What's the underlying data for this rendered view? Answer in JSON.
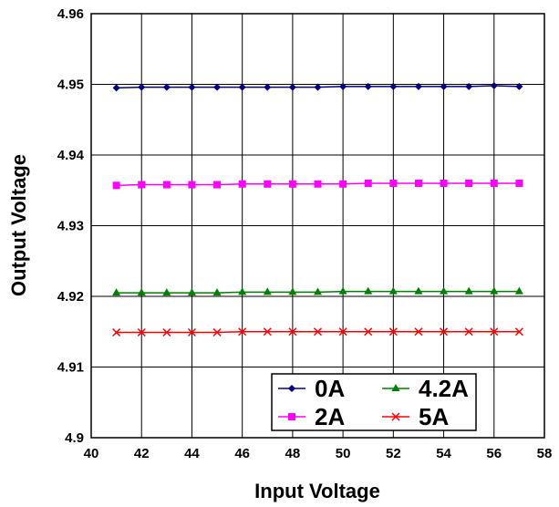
{
  "chart_data": {
    "type": "line",
    "title": "",
    "xlabel": "Input Voltage",
    "ylabel": "Output Voltage",
    "xlim": [
      40,
      58
    ],
    "ylim": [
      4.9,
      4.96
    ],
    "x_ticks": [
      "40",
      "42",
      "44",
      "46",
      "48",
      "50",
      "52",
      "54",
      "56",
      "58"
    ],
    "y_ticks": [
      "4.9",
      "4.91",
      "4.92",
      "4.93",
      "4.94",
      "4.95",
      "4.96"
    ],
    "grid": true,
    "legend_position": "bottom-right",
    "x": [
      41,
      42,
      43,
      44,
      45,
      46,
      47,
      48,
      49,
      50,
      51,
      52,
      53,
      54,
      55,
      56,
      57
    ],
    "series": [
      {
        "name": "0A",
        "color": "#000080",
        "marker": "diamond",
        "values": [
          4.9495,
          4.9496,
          4.9496,
          4.9496,
          4.9496,
          4.9496,
          4.9496,
          4.9496,
          4.9496,
          4.9497,
          4.9497,
          4.9497,
          4.9497,
          4.9497,
          4.9497,
          4.9498,
          4.9497
        ]
      },
      {
        "name": "2A",
        "color": "#ff00ff",
        "marker": "square",
        "values": [
          4.9357,
          4.9358,
          4.9358,
          4.9358,
          4.9358,
          4.9359,
          4.9359,
          4.9359,
          4.9359,
          4.9359,
          4.936,
          4.936,
          4.936,
          4.936,
          4.936,
          4.936,
          4.936
        ]
      },
      {
        "name": "4.2A",
        "color": "#008000",
        "marker": "triangle",
        "values": [
          4.9205,
          4.9205,
          4.9205,
          4.9205,
          4.9205,
          4.9206,
          4.9206,
          4.9206,
          4.9206,
          4.9207,
          4.9207,
          4.9207,
          4.9207,
          4.9207,
          4.9207,
          4.9207,
          4.9207
        ]
      },
      {
        "name": "5A",
        "color": "#ff0000",
        "marker": "x",
        "values": [
          4.9149,
          4.9149,
          4.9149,
          4.9149,
          4.9149,
          4.915,
          4.915,
          4.915,
          4.915,
          4.915,
          4.915,
          4.915,
          4.915,
          4.915,
          4.915,
          4.915,
          4.915
        ]
      }
    ]
  }
}
